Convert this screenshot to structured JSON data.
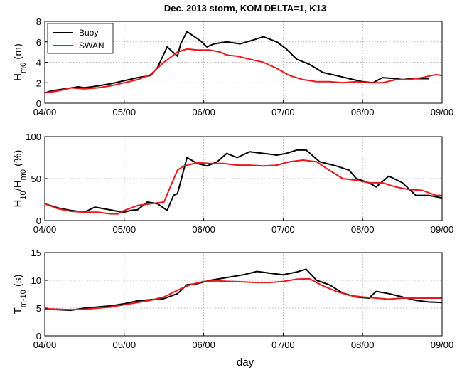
{
  "chart_data": [
    {
      "type": "line",
      "title": "Dec. 2013 storm, KOM DELTA=1, K13",
      "ylabel": {
        "main": "H",
        "sub": "m0",
        "unit": " (m)"
      },
      "xlabel": "",
      "xlim": [
        0,
        5
      ],
      "ylim": [
        0,
        8
      ],
      "yticks": [
        0,
        2,
        4,
        6,
        8
      ],
      "xtick_labels": [
        "04/00",
        "05/00",
        "06/00",
        "07/00",
        "08/00",
        "09/00"
      ],
      "grid": true,
      "legend": {
        "placement": "top-left",
        "entries": [
          "Buoy",
          "SWAN"
        ]
      },
      "series": [
        {
          "name": "Buoy",
          "color": "#000000",
          "x": [
            0,
            0.08,
            0.25,
            0.42,
            0.5,
            0.67,
            0.83,
            1.0,
            1.17,
            1.33,
            1.42,
            1.54,
            1.67,
            1.71,
            1.79,
            1.96,
            2.04,
            2.13,
            2.29,
            2.46,
            2.63,
            2.75,
            2.92,
            3.04,
            3.17,
            3.33,
            3.5,
            3.67,
            3.83,
            4.0,
            4.13,
            4.25,
            4.42,
            4.5,
            4.63,
            4.83
          ],
          "values": [
            1.0,
            1.2,
            1.4,
            1.6,
            1.5,
            1.7,
            1.9,
            2.2,
            2.5,
            2.7,
            3.5,
            5.5,
            4.6,
            5.8,
            7.0,
            6.1,
            5.5,
            5.8,
            6.0,
            5.8,
            6.2,
            6.5,
            6.0,
            5.3,
            4.3,
            3.8,
            3.0,
            2.7,
            2.4,
            2.1,
            2.0,
            2.5,
            2.4,
            2.3,
            2.4,
            2.4
          ]
        },
        {
          "name": "SWAN",
          "color": "#e8191d",
          "x": [
            0,
            0.17,
            0.33,
            0.5,
            0.67,
            0.83,
            1.0,
            1.17,
            1.33,
            1.5,
            1.67,
            1.79,
            1.92,
            2.08,
            2.21,
            2.29,
            2.42,
            2.58,
            2.75,
            2.92,
            3.08,
            3.25,
            3.42,
            3.58,
            3.75,
            3.92,
            4.08,
            4.25,
            4.42,
            4.58,
            4.75,
            4.92,
            5.0
          ],
          "values": [
            1.0,
            1.2,
            1.5,
            1.4,
            1.5,
            1.7,
            2.0,
            2.3,
            2.8,
            4.0,
            5.0,
            5.3,
            5.2,
            5.2,
            5.0,
            4.7,
            4.6,
            4.3,
            4.0,
            3.4,
            2.7,
            2.3,
            2.1,
            2.1,
            2.0,
            2.1,
            2.0,
            2.0,
            2.3,
            2.3,
            2.5,
            2.8,
            2.7
          ]
        }
      ]
    },
    {
      "type": "line",
      "title": "",
      "ylabel": {
        "main": "H",
        "sub": "10",
        "mid": "/H",
        "sub2": "m0",
        "unit": " (%)"
      },
      "xlabel": "",
      "xlim": [
        0,
        5
      ],
      "ylim": [
        0,
        100
      ],
      "yticks": [
        0,
        50,
        100
      ],
      "xtick_labels": [
        "04/00",
        "05/00",
        "06/00",
        "07/00",
        "08/00",
        "09/00"
      ],
      "grid": true,
      "series": [
        {
          "name": "Buoy",
          "color": "#000000",
          "x": [
            0,
            0.17,
            0.33,
            0.5,
            0.63,
            0.75,
            0.92,
            1.0,
            1.08,
            1.17,
            1.29,
            1.42,
            1.54,
            1.62,
            1.67,
            1.79,
            1.92,
            2.04,
            2.17,
            2.29,
            2.42,
            2.58,
            2.75,
            2.92,
            3.04,
            3.17,
            3.29,
            3.46,
            3.67,
            3.83,
            3.92,
            4.08,
            4.17,
            4.33,
            4.5,
            4.67,
            4.83,
            5.0
          ],
          "values": [
            20,
            15,
            12,
            10,
            16,
            14,
            11,
            10,
            12,
            13,
            22,
            20,
            12,
            30,
            32,
            75,
            68,
            65,
            70,
            80,
            75,
            82,
            80,
            78,
            80,
            84,
            84,
            70,
            65,
            60,
            50,
            45,
            40,
            53,
            45,
            30,
            30,
            27
          ]
        },
        {
          "name": "SWAN",
          "color": "#e8191d",
          "x": [
            0,
            0.17,
            0.33,
            0.5,
            0.67,
            0.83,
            0.92,
            1.0,
            1.17,
            1.33,
            1.5,
            1.58,
            1.67,
            1.75,
            1.92,
            2.08,
            2.25,
            2.42,
            2.58,
            2.75,
            2.92,
            3.08,
            3.25,
            3.42,
            3.58,
            3.75,
            3.92,
            4.08,
            4.25,
            4.42,
            4.58,
            4.75,
            4.92,
            5.0
          ],
          "values": [
            20,
            14,
            11,
            10,
            10,
            8,
            8,
            12,
            18,
            20,
            22,
            40,
            60,
            65,
            69,
            68,
            68,
            66,
            66,
            65,
            66,
            70,
            72,
            70,
            60,
            50,
            48,
            45,
            45,
            40,
            37,
            36,
            30,
            30
          ]
        }
      ]
    },
    {
      "type": "line",
      "title": "",
      "ylabel": {
        "main": "T",
        "sub": "m-10",
        "unit": " (s)"
      },
      "xlabel": "day",
      "xlim": [
        0,
        5
      ],
      "ylim": [
        0,
        15
      ],
      "yticks": [
        0,
        5,
        10,
        15
      ],
      "xtick_labels": [
        "04/00",
        "05/00",
        "06/00",
        "07/00",
        "08/00",
        "09/00"
      ],
      "grid": true,
      "series": [
        {
          "name": "Buoy",
          "color": "#000000",
          "x": [
            0,
            0.17,
            0.33,
            0.5,
            0.67,
            0.83,
            1.0,
            1.17,
            1.33,
            1.5,
            1.67,
            1.79,
            1.92,
            2.08,
            2.25,
            2.33,
            2.5,
            2.67,
            2.83,
            3.0,
            3.17,
            3.29,
            3.42,
            3.58,
            3.75,
            3.92,
            4.08,
            4.17,
            4.33,
            4.5,
            4.67,
            4.83,
            5.0
          ],
          "values": [
            4.8,
            4.7,
            4.6,
            5.0,
            5.2,
            5.4,
            5.8,
            6.3,
            6.5,
            6.7,
            7.6,
            9.2,
            9.4,
            10.0,
            10.4,
            10.6,
            11.0,
            11.6,
            11.3,
            11.0,
            11.5,
            12.0,
            10.0,
            9.2,
            7.7,
            7.0,
            6.8,
            8.0,
            7.6,
            7.0,
            6.4,
            6.1,
            6.0
          ]
        },
        {
          "name": "SWAN",
          "color": "#e8191d",
          "x": [
            0,
            0.17,
            0.33,
            0.5,
            0.67,
            0.83,
            1.0,
            1.17,
            1.33,
            1.5,
            1.67,
            1.83,
            2.0,
            2.17,
            2.33,
            2.5,
            2.67,
            2.83,
            3.0,
            3.17,
            3.33,
            3.5,
            3.67,
            3.83,
            4.0,
            4.17,
            4.33,
            4.5,
            4.67,
            4.83,
            5.0
          ],
          "values": [
            4.9,
            4.8,
            4.7,
            4.8,
            5.0,
            5.2,
            5.6,
            6.0,
            6.4,
            7.0,
            8.2,
            9.2,
            9.8,
            9.9,
            9.8,
            9.7,
            9.6,
            9.6,
            9.8,
            10.2,
            10.3,
            9.0,
            8.0,
            7.3,
            7.0,
            6.8,
            6.6,
            6.8,
            6.8,
            6.8,
            6.8
          ]
        }
      ]
    }
  ]
}
